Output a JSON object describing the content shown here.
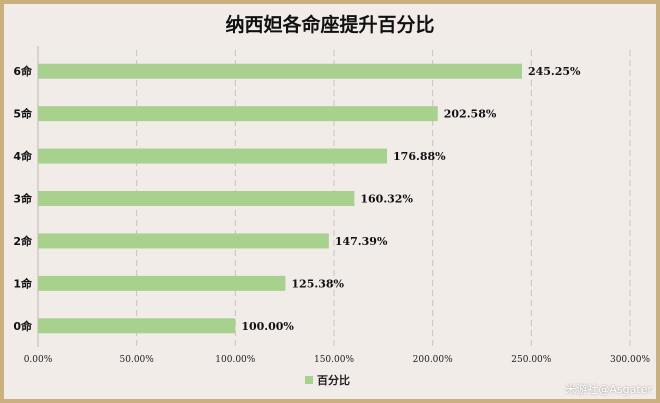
{
  "chart_data": {
    "type": "bar",
    "orientation": "horizontal",
    "title": "纳西妲各命座提升百分比",
    "categories": [
      "0命",
      "1命",
      "2命",
      "3命",
      "4命",
      "5命",
      "6命"
    ],
    "series": [
      {
        "name": "百分比",
        "values": [
          100.0,
          125.38,
          147.39,
          160.32,
          176.88,
          202.58,
          245.25
        ]
      }
    ],
    "value_labels": [
      "100.00%",
      "125.38%",
      "147.39%",
      "160.32%",
      "176.88%",
      "202.58%",
      "245.25%"
    ],
    "xlim": [
      0,
      300
    ],
    "x_ticks": [
      "0.00%",
      "50.00%",
      "100.00%",
      "150.00%",
      "200.00%",
      "250.00%",
      "300.00%"
    ],
    "gridlines": "vertical-dashed",
    "legend_position": "bottom",
    "bar_color": "#a9d18e"
  },
  "watermark": "米游社@Asgater"
}
